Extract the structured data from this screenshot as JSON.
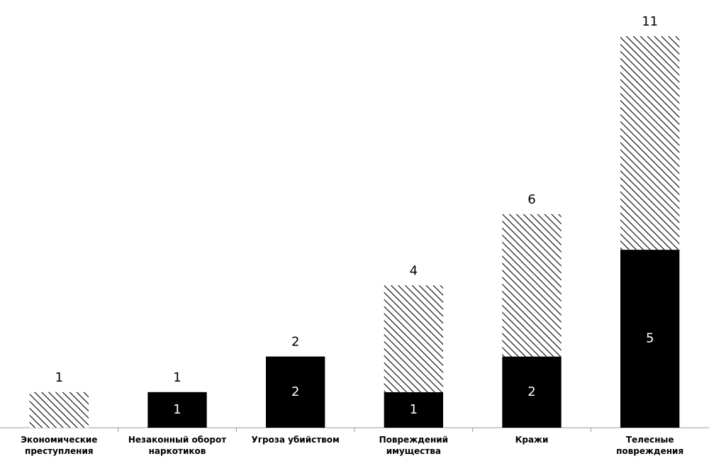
{
  "chart_data": {
    "type": "stacked-bar",
    "categories": [
      "Экономические преступления",
      "Незаконный оборот наркотиков",
      "Угроза убийством",
      "Повреждений имущества",
      "Кражи",
      "Телесные повреждения"
    ],
    "series": [
      {
        "color": "#000000",
        "values": [
          0,
          1,
          2,
          1,
          2,
          5
        ],
        "show_labels": true
      },
      {
        "color": "#000000",
        "hatch": true,
        "values": [
          1,
          0,
          0,
          3,
          4,
          6
        ],
        "show_labels": false
      }
    ],
    "totals": [
      1,
      1,
      2,
      4,
      6,
      11
    ]
  }
}
